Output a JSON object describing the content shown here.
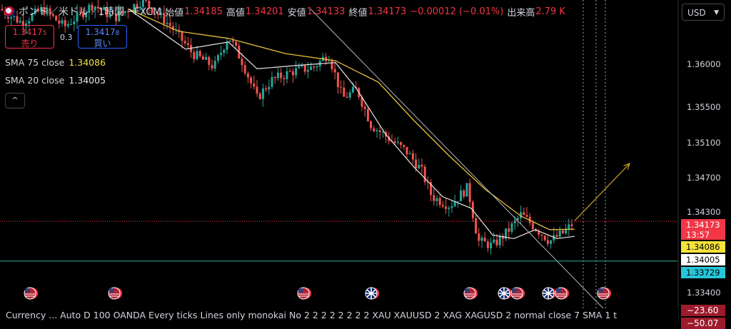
{
  "header": {
    "symbol": "ポンド／米ドル · 1時間 · FXCM",
    "open_label": "始値",
    "open": "1.34185",
    "high_label": "高値",
    "high": "1.34201",
    "low_label": "安値",
    "low": "1.34133",
    "close_label": "終値",
    "close": "1.34173",
    "change": "−0.00012 (−0.01%)",
    "volume_label": "出来高",
    "volume": "2.79 K"
  },
  "trade": {
    "sell_price_main": "1.3417",
    "sell_price_small": "5",
    "sell_label": "売り",
    "spread": "0.3",
    "buy_price_main": "1.3417",
    "buy_price_small": "8",
    "buy_label": "買い"
  },
  "indicators": {
    "sma75_label": "SMA 75 close",
    "sma75_value": "1.34086",
    "sma20_label": "SMA 20 close",
    "sma20_value": "1.34005",
    "collapse_icon": "^"
  },
  "currency_selector": "USD",
  "price_axis": {
    "ticks": [
      "1.36000",
      "1.35500",
      "1.35100",
      "1.34700",
      "1.34300",
      "1.33400"
    ],
    "last_price": "1.34173",
    "countdown": "13:57",
    "sma75_tag": "1.34086",
    "sma20_tag": "1.34005",
    "hline_tag": "1.33729"
  },
  "bottom_bar": {
    "text": "Currency ...  Auto D 100 OANDA Every ticks Lines only monokai No 2 2 2 2 2 2 2 2 XAU XAUUSD 2 XAG XAGUSD 2 normal close 7 SMA 1 t",
    "value1": "−23.60",
    "value2": "−50.07"
  },
  "colors": {
    "up": "#26a69a",
    "down": "#ef5350",
    "sma75": "#e8c13a",
    "sma20": "#e6e6e6",
    "last_price": "#f23645",
    "hline": "#22ab94"
  },
  "event_icons": [
    "us-flag",
    "us-flag",
    "us-flag",
    "uk-flag",
    "us-flag",
    "uk-flag",
    "us-flag",
    "uk-flag",
    "us-flag",
    "us-flag"
  ],
  "chart_data": {
    "type": "candlestick",
    "ylim": [
      1.332,
      1.3665
    ],
    "price_points": [
      [
        0,
        1.3655
      ],
      [
        30,
        1.364
      ],
      [
        60,
        1.3655
      ],
      [
        90,
        1.3635
      ],
      [
        130,
        1.366
      ],
      [
        160,
        1.3645
      ],
      [
        200,
        1.3665
      ],
      [
        240,
        1.3635
      ],
      [
        270,
        1.3605
      ],
      [
        300,
        1.359
      ],
      [
        320,
        1.3625
      ],
      [
        340,
        1.3595
      ],
      [
        360,
        1.3555
      ],
      [
        380,
        1.3575
      ],
      [
        410,
        1.3585
      ],
      [
        440,
        1.359
      ],
      [
        460,
        1.3605
      ],
      [
        480,
        1.3555
      ],
      [
        500,
        1.3565
      ],
      [
        520,
        1.3525
      ],
      [
        545,
        1.351
      ],
      [
        570,
        1.3495
      ],
      [
        590,
        1.3475
      ],
      [
        605,
        1.3445
      ],
      [
        630,
        1.3435
      ],
      [
        655,
        1.3455
      ],
      [
        670,
        1.3395
      ],
      [
        690,
        1.339
      ],
      [
        710,
        1.3405
      ],
      [
        730,
        1.3425
      ],
      [
        750,
        1.341
      ],
      [
        770,
        1.3395
      ],
      [
        790,
        1.3405
      ],
      [
        805,
        1.3417
      ]
    ],
    "sma75_points": [
      [
        180,
        1.3655
      ],
      [
        250,
        1.363
      ],
      [
        320,
        1.3622
      ],
      [
        400,
        1.3605
      ],
      [
        470,
        1.3597
      ],
      [
        530,
        1.3573
      ],
      [
        580,
        1.353
      ],
      [
        630,
        1.349
      ],
      [
        680,
        1.3453
      ],
      [
        730,
        1.3423
      ],
      [
        770,
        1.3408
      ],
      [
        805,
        1.34086
      ]
    ],
    "sma20_points": [
      [
        180,
        1.3655
      ],
      [
        260,
        1.361
      ],
      [
        320,
        1.3618
      ],
      [
        360,
        1.3588
      ],
      [
        420,
        1.3592
      ],
      [
        470,
        1.3595
      ],
      [
        500,
        1.3565
      ],
      [
        540,
        1.3515
      ],
      [
        580,
        1.3478
      ],
      [
        620,
        1.3445
      ],
      [
        660,
        1.3432
      ],
      [
        690,
        1.3402
      ],
      [
        720,
        1.3398
      ],
      [
        750,
        1.3408
      ],
      [
        780,
        1.3398
      ],
      [
        805,
        1.34005
      ]
    ],
    "trendline": [
      [
        435,
        1.3655
      ],
      [
        845,
        1.332
      ]
    ],
    "projection": [
      [
        805,
        1.3418
      ],
      [
        882,
        1.3482
      ]
    ],
    "horizontal_level": 1.33729
  }
}
